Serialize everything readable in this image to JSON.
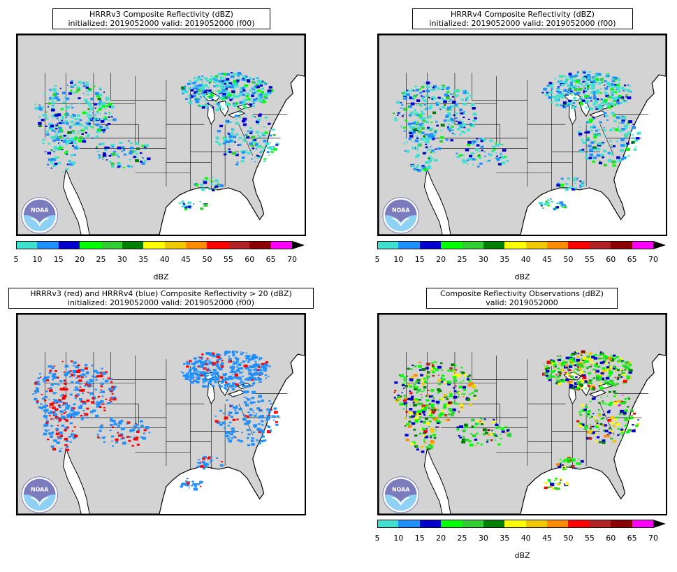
{
  "panels": [
    {
      "title_line1": "HRRRv3 Composite Reflectivity (dBZ)",
      "title_line2": "initialized: 2019052000 valid: 2019052000 (f00)"
    },
    {
      "title_line1": "HRRRv4 Composite Reflectivity (dBZ)",
      "title_line2": "initialized: 2019052000 valid: 2019052000 (f00)"
    },
    {
      "title_line1": "HRRRv3 (red) and HRRRv4 (blue) Composite Reflectivity > 20 (dBZ)",
      "title_line2": "initialized: 2019052000 valid: 2019052000 (f00)"
    },
    {
      "title_line1": "Composite Reflectivity Observations (dBZ)",
      "title_line2": "valid: 2019052000"
    }
  ],
  "colorbar": {
    "ticks": [
      "5",
      "10",
      "15",
      "20",
      "25",
      "30",
      "35",
      "40",
      "45",
      "50",
      "55",
      "60",
      "65",
      "70"
    ],
    "label": "dBZ",
    "colors": [
      "#40e0d0",
      "#1e90ff",
      "#0000cd",
      "#00ff00",
      "#32cd32",
      "#008000",
      "#ffff00",
      "#eec900",
      "#ff8c00",
      "#ff0000",
      "#b22222",
      "#8b0000",
      "#ff00ff"
    ]
  },
  "logo_text": "NOAA",
  "colors": {
    "land": "#d3d3d3",
    "water": "#ffffff",
    "v3": "#ff0000",
    "v4": "#1e90ff"
  }
}
